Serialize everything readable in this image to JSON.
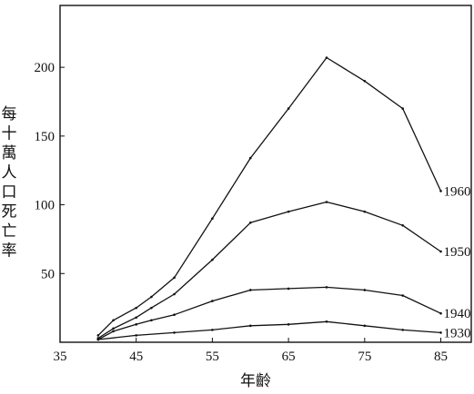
{
  "chart_data": {
    "type": "line",
    "xlabel": "年齡",
    "ylabel": "每十萬人口死亡率",
    "xlim": [
      35,
      89
    ],
    "ylim": [
      0,
      245
    ],
    "xticks": [
      35,
      45,
      55,
      65,
      75,
      85
    ],
    "yticks": [
      50,
      100,
      150,
      200
    ],
    "grid": false,
    "series": [
      {
        "name": "1960",
        "x": [
          40,
          42,
          45,
          47,
          50,
          55,
          60,
          65,
          70,
          75,
          80,
          85
        ],
        "y": [
          5,
          16,
          25,
          33,
          47,
          90,
          134,
          170,
          207,
          190,
          170,
          110
        ]
      },
      {
        "name": "1950",
        "x": [
          40,
          42,
          45,
          47,
          50,
          55,
          60,
          65,
          70,
          75,
          80,
          85
        ],
        "y": [
          3,
          10,
          18,
          25,
          35,
          60,
          87,
          95,
          102,
          95,
          85,
          66
        ]
      },
      {
        "name": "1940",
        "x": [
          40,
          42,
          45,
          47,
          50,
          55,
          60,
          65,
          70,
          75,
          80,
          85
        ],
        "y": [
          2,
          8,
          13,
          16,
          20,
          30,
          38,
          39,
          40,
          38,
          34,
          21
        ]
      },
      {
        "name": "1930",
        "x": [
          40,
          45,
          50,
          55,
          60,
          65,
          70,
          75,
          80,
          85
        ],
        "y": [
          2,
          5,
          7,
          9,
          12,
          13,
          15,
          12,
          9,
          7
        ]
      }
    ]
  }
}
